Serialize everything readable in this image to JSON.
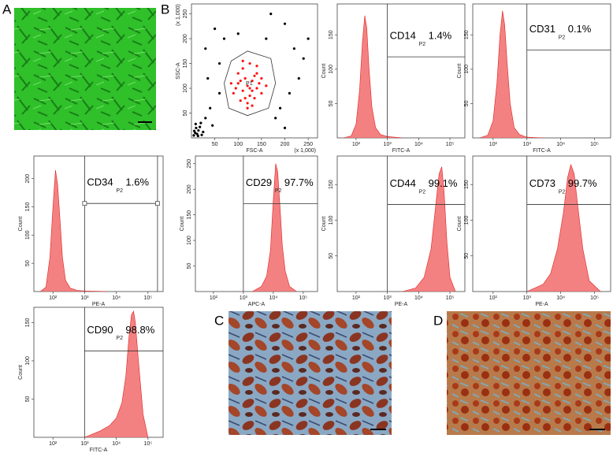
{
  "panel_labels": [
    "A",
    "B",
    "C",
    "D"
  ],
  "chart_data": [
    {
      "type": "scatter",
      "xlabel": "FSC-A",
      "ylabel": "SSC-A",
      "x_unit": "(x 1,000)",
      "y_unit": "(x 1,000)",
      "xlim": [
        0,
        270
      ],
      "ylim": [
        0,
        270
      ],
      "xticks": [
        50,
        100,
        150,
        200,
        250
      ],
      "yticks": [
        50,
        100,
        150,
        200,
        250
      ],
      "gate_label": "P1",
      "gate_polygon": {
        "x": [
          80,
          120,
          165,
          180,
          170,
          120,
          85,
          70
        ],
        "y": [
          60,
          45,
          60,
          110,
          160,
          175,
          155,
          110
        ]
      },
      "series": [
        {
          "color": "#000000",
          "x": [
            5,
            8,
            10,
            12,
            15,
            20,
            25,
            30,
            40,
            60,
            70,
            50,
            160,
            200,
            220,
            240,
            180,
            210,
            60,
            230,
            250,
            190,
            35,
            45,
            170,
            100,
            200,
            30,
            6,
            14,
            18,
            9,
            22
          ],
          "values": [
            5,
            10,
            20,
            8,
            15,
            30,
            12,
            40,
            60,
            150,
            200,
            220,
            200,
            230,
            180,
            160,
            40,
            90,
            90,
            120,
            200,
            60,
            120,
            25,
            250,
            210,
            20,
            180,
            14,
            4,
            22,
            28,
            6
          ]
        },
        {
          "color": "#ff1010",
          "x": [
            90,
            100,
            110,
            120,
            130,
            140,
            150,
            105,
            115,
            125,
            135,
            145,
            95,
            100,
            110,
            120,
            130,
            140,
            125,
            115,
            135,
            105,
            150,
            160,
            85,
            120,
            130,
            110,
            140,
            125
          ],
          "values": [
            90,
            110,
            95,
            105,
            115,
            100,
            90,
            75,
            80,
            85,
            125,
            110,
            100,
            130,
            140,
            70,
            95,
            130,
            150,
            120,
            80,
            115,
            120,
            105,
            110,
            60,
            65,
            155,
            145,
            100
          ]
        }
      ]
    },
    {
      "type": "area",
      "xscale": "log",
      "xlabel": "FITC-A",
      "ylabel": "Count",
      "color": "#f26b6b",
      "xlim": [
        25,
        300000
      ],
      "ylim": [
        0,
        195
      ],
      "xticks": [
        {
          "value": 100,
          "label": "10²"
        },
        {
          "value": 1000,
          "label": "10³"
        },
        {
          "value": 10000,
          "label": "10⁴"
        },
        {
          "value": 100000,
          "label": "10⁵"
        }
      ],
      "yticks": [
        50,
        100,
        150
      ],
      "x": [
        40,
        70,
        100,
        130,
        160,
        190,
        220,
        260,
        320,
        420,
        600,
        1000,
        3000
      ],
      "values": [
        0,
        3,
        20,
        70,
        140,
        178,
        160,
        100,
        45,
        15,
        5,
        2,
        0
      ],
      "gate": {
        "x": 1000,
        "y": 118,
        "label": "CD14",
        "region": "P2",
        "percent": "1.4%"
      }
    },
    {
      "type": "area",
      "xscale": "log",
      "xlabel": "FITC-A",
      "ylabel": "Count",
      "color": "#f26b6b",
      "xlim": [
        25,
        300000
      ],
      "ylim": [
        0,
        195
      ],
      "xticks": [
        {
          "value": 100,
          "label": "10²"
        },
        {
          "value": 1000,
          "label": "10³"
        },
        {
          "value": 10000,
          "label": "10⁴"
        },
        {
          "value": 100000,
          "label": "10⁵"
        }
      ],
      "yticks": [
        50,
        100,
        150
      ],
      "x": [
        40,
        70,
        100,
        130,
        160,
        190,
        220,
        260,
        320,
        420,
        600,
        1000,
        3000
      ],
      "values": [
        0,
        4,
        25,
        80,
        150,
        185,
        165,
        110,
        50,
        15,
        5,
        1,
        0
      ],
      "gate": {
        "x": 1000,
        "y": 128,
        "label": "CD31",
        "region": "P2",
        "percent": "0.1%"
      }
    },
    {
      "type": "area",
      "xscale": "log",
      "xlabel": "PE-A",
      "ylabel": "Count",
      "color": "#f26b6b",
      "xlim": [
        25,
        300000
      ],
      "ylim": [
        0,
        240
      ],
      "xticks": [
        {
          "value": 100,
          "label": "10²"
        },
        {
          "value": 1000,
          "label": "10³"
        },
        {
          "value": 10000,
          "label": "10⁴"
        },
        {
          "value": 100000,
          "label": "10⁵"
        }
      ],
      "yticks": [
        50,
        100,
        150,
        200
      ],
      "x": [
        40,
        60,
        80,
        100,
        120,
        140,
        170,
        200,
        250,
        350,
        600,
        1000,
        5000
      ],
      "values": [
        0,
        8,
        60,
        150,
        215,
        190,
        120,
        60,
        20,
        6,
        2,
        1,
        0
      ],
      "gate": {
        "x": 1000,
        "x_end": 200000,
        "y": 156,
        "label": "CD34",
        "region": "P2",
        "percent": "1.6%"
      }
    },
    {
      "type": "area",
      "xscale": "log",
      "xlabel": "APC-A",
      "ylabel": "Count",
      "color": "#f26b6b",
      "xlim": [
        25,
        300000
      ],
      "ylim": [
        0,
        265
      ],
      "xticks": [
        {
          "value": 100,
          "label": "10²"
        },
        {
          "value": 1000,
          "label": "10³"
        },
        {
          "value": 10000,
          "label": "10⁴"
        },
        {
          "value": 100000,
          "label": "10⁵"
        }
      ],
      "yticks": [
        50,
        100,
        150,
        200,
        250
      ],
      "x": [
        2000,
        4000,
        6000,
        8000,
        10000,
        12000,
        14000,
        17000,
        20000,
        25000,
        35000,
        60000
      ],
      "values": [
        0,
        10,
        30,
        80,
        180,
        250,
        235,
        160,
        90,
        40,
        10,
        0
      ],
      "gate": {
        "x": 1000,
        "y": 172,
        "label": "CD29",
        "region": "P2",
        "percent": "97.7%"
      }
    },
    {
      "type": "area",
      "xscale": "log",
      "xlabel": "PE-A",
      "ylabel": "Count",
      "color": "#f26b6b",
      "xlim": [
        25,
        300000
      ],
      "ylim": [
        0,
        190
      ],
      "xticks": [
        {
          "value": 100,
          "label": "10²"
        },
        {
          "value": 1000,
          "label": "10³"
        },
        {
          "value": 10000,
          "label": "10⁴"
        },
        {
          "value": 100000,
          "label": "10⁵"
        }
      ],
      "yticks": [
        50,
        100,
        150
      ],
      "x": [
        3000,
        8000,
        15000,
        25000,
        35000,
        45000,
        55000,
        65000,
        80000,
        100000,
        150000
      ],
      "values": [
        0,
        5,
        20,
        60,
        120,
        165,
        175,
        140,
        70,
        20,
        0
      ],
      "gate": {
        "x": 1000,
        "y": 122,
        "label": "CD44",
        "region": "P2",
        "percent": "99.1%"
      }
    },
    {
      "type": "area",
      "xscale": "log",
      "xlabel": "PE-A",
      "ylabel": "Count",
      "color": "#f26b6b",
      "xlim": [
        25,
        300000
      ],
      "ylim": [
        0,
        190
      ],
      "xticks": [
        {
          "value": 100,
          "label": "10²"
        },
        {
          "value": 1000,
          "label": "10³"
        },
        {
          "value": 10000,
          "label": "10⁴"
        },
        {
          "value": 100000,
          "label": "10⁵"
        }
      ],
      "yticks": [
        50,
        100,
        150
      ],
      "x": [
        1000,
        3000,
        5000,
        8000,
        12000,
        16000,
        20000,
        25000,
        32000,
        45000,
        70000,
        150000
      ],
      "values": [
        0,
        10,
        25,
        60,
        110,
        160,
        178,
        165,
        120,
        60,
        15,
        0
      ],
      "gate": {
        "x": 1000,
        "y": 122,
        "label": "CD73",
        "region": "P2",
        "percent": "99.7%"
      }
    },
    {
      "type": "area",
      "xscale": "log",
      "xlabel": "FITC-A",
      "ylabel": "Count",
      "color": "#f26b6b",
      "xlim": [
        25,
        300000
      ],
      "ylim": [
        0,
        170
      ],
      "xticks": [
        {
          "value": 100,
          "label": "10²"
        },
        {
          "value": 1000,
          "label": "10³"
        },
        {
          "value": 10000,
          "label": "10⁴"
        },
        {
          "value": 100000,
          "label": "10⁵"
        }
      ],
      "yticks": [
        50,
        100,
        150
      ],
      "x": [
        1000,
        3000,
        6000,
        10000,
        15000,
        20000,
        25000,
        30000,
        35000,
        40000,
        50000,
        70000,
        100000
      ],
      "values": [
        0,
        8,
        15,
        25,
        45,
        80,
        130,
        160,
        165,
        150,
        100,
        30,
        0
      ],
      "gate": {
        "x": 1000,
        "y": 113,
        "label": "CD90",
        "region": "P2",
        "percent": "98.8%"
      }
    }
  ]
}
